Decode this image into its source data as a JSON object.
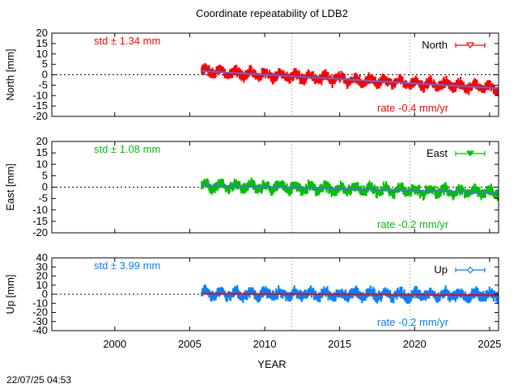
{
  "timestamp": "22/07/25 04:53",
  "chart_data": {
    "type": "scatter",
    "title": "Coordinate repeatability of LDB2",
    "xlabel": "YEAR",
    "xlim": [
      1995.8,
      2025.6
    ],
    "xticks": [
      2000,
      2005,
      2010,
      2015,
      2020,
      2025
    ],
    "vlines": [
      2011.8,
      2019.7
    ],
    "data_start": 2005.8,
    "data_end": 2025.6,
    "panels": [
      {
        "name": "North",
        "ylabel": "North [mm]",
        "legend": "North",
        "color": "#ff0000",
        "trend_color": "#4d6ee6",
        "ylim": [
          -20,
          20
        ],
        "yticks": [
          20,
          15,
          10,
          5,
          0,
          -5,
          -10,
          -15,
          -20
        ],
        "std_label": "std ± 1.34 mm",
        "rate_label": "rate -0.4 mm/yr",
        "rate_mm_per_yr": -0.4,
        "trend_start_value": 1.8,
        "trend_end_value": -6.5,
        "scatter_mm": 2.2
      },
      {
        "name": "East",
        "ylabel": "East [mm]",
        "legend": "East",
        "color": "#00c000",
        "trend_color": "#4d6ee6",
        "ylim": [
          -20,
          20
        ],
        "yticks": [
          20,
          15,
          10,
          5,
          0,
          -5,
          -10,
          -15,
          -20
        ],
        "std_label": "std ± 1.08 mm",
        "rate_label": "rate -0.2 mm/yr",
        "rate_mm_per_yr": -0.2,
        "trend_start_value": 0.8,
        "trend_end_value": -2.5,
        "scatter_mm": 2.0
      },
      {
        "name": "Up",
        "ylabel": "Up [mm]",
        "legend": "Up",
        "color": "#0080ff",
        "trend_color": "#ff0000",
        "ylim": [
          -40,
          40
        ],
        "yticks": [
          40,
          30,
          20,
          10,
          0,
          -10,
          -20,
          -30,
          -40
        ],
        "std_label": "std ± 3.99 mm",
        "rate_label": "rate -0.2 mm/yr",
        "rate_mm_per_yr": -0.2,
        "trend_start_value": 0.5,
        "trend_end_value": -1.0,
        "scatter_mm": 5.0
      }
    ]
  }
}
